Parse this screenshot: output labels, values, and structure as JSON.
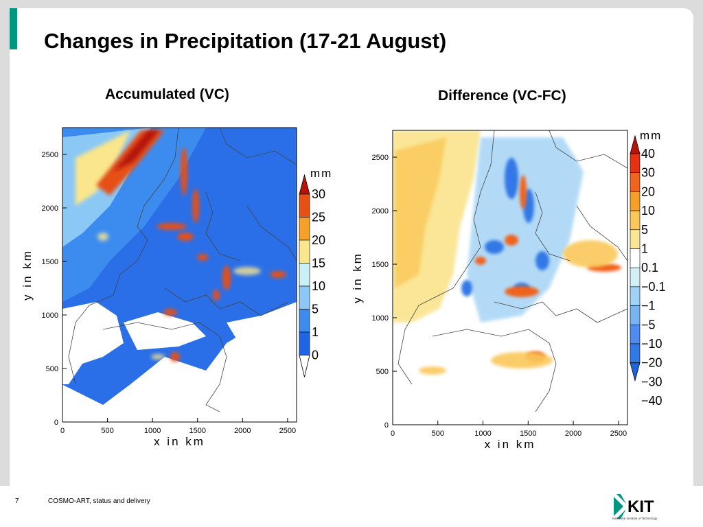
{
  "slide": {
    "title": "Changes in Precipitation (17-21 August)",
    "page_number": "7",
    "footer_text": "COSMO-ART, status and delivery",
    "logo": {
      "mark": "KIT",
      "tagline": "Karlsruhe Institute of Technology"
    },
    "accent_color": "#009682"
  },
  "chart_data": [
    {
      "type": "heatmap",
      "title": "Accumulated (VC)",
      "xlabel": "x in km",
      "ylabel": "y in km",
      "xlim": [
        0,
        2600
      ],
      "ylim": [
        0,
        2750
      ],
      "x_ticks": [
        "0",
        "500",
        "1000",
        "1500",
        "2000",
        "2500"
      ],
      "y_ticks": [
        "0",
        "500",
        "1000",
        "1500",
        "2000",
        "2500"
      ],
      "colorbar": {
        "unit": "mm",
        "labels": [
          "0",
          "1",
          "5",
          "10",
          "15",
          "20",
          "25",
          "30"
        ],
        "colors": [
          "#ffffff",
          "#1e64e6",
          "#3c8cf0",
          "#8cc8f5",
          "#c8f0f5",
          "#fae68c",
          "#f5a028",
          "#e65014",
          "#b4140a"
        ]
      }
    },
    {
      "type": "heatmap",
      "title": "Difference (VC-FC)",
      "xlabel": "x in km",
      "ylabel": "y in km",
      "xlim": [
        0,
        2600
      ],
      "ylim": [
        0,
        2750
      ],
      "x_ticks": [
        "0",
        "500",
        "1000",
        "1500",
        "2000",
        "2500"
      ],
      "y_ticks": [
        "0",
        "500",
        "1000",
        "1500",
        "2000",
        "2500"
      ],
      "colorbar": {
        "unit": "mm",
        "labels": [
          "40",
          "30",
          "20",
          "10",
          "5",
          "1",
          "0.1",
          "−0.1",
          "−1",
          "−5",
          "−10",
          "−20",
          "−30",
          "−40"
        ],
        "colors": [
          "#b4140a",
          "#e63214",
          "#f0641e",
          "#f5a028",
          "#fac85a",
          "#fae696",
          "#ffffff",
          "#d2f0f5",
          "#a0d2f5",
          "#78b4f0",
          "#508cf0",
          "#3278e6",
          "#1e64dc"
        ]
      }
    }
  ]
}
